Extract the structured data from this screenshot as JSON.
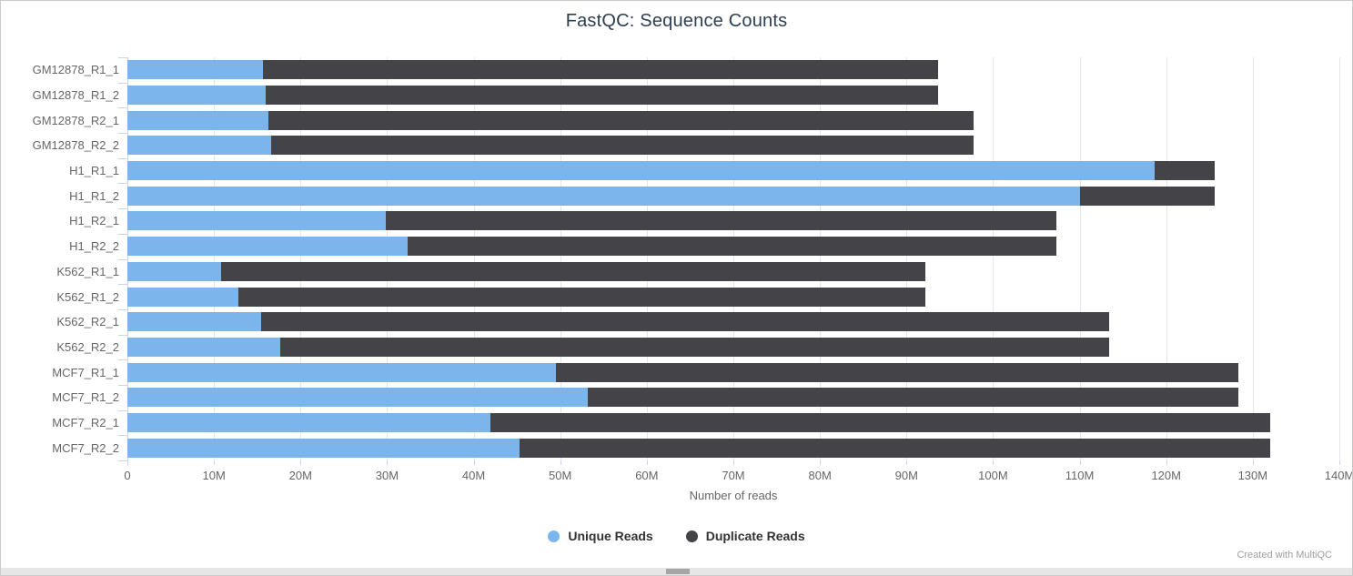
{
  "chart_data": {
    "type": "bar",
    "orientation": "horizontal",
    "stacked": true,
    "title": "FastQC: Sequence Counts",
    "xlabel": "Number of reads",
    "grid": "vertical-on",
    "legend_position": "bottom",
    "x_axis": {
      "min": 0,
      "max": 140,
      "unit": "millions of reads",
      "ticks": [
        {
          "value": 0,
          "label": "0"
        },
        {
          "value": 10,
          "label": "10M"
        },
        {
          "value": 20,
          "label": "20M"
        },
        {
          "value": 30,
          "label": "30M"
        },
        {
          "value": 40,
          "label": "40M"
        },
        {
          "value": 50,
          "label": "50M"
        },
        {
          "value": 60,
          "label": "60M"
        },
        {
          "value": 70,
          "label": "70M"
        },
        {
          "value": 80,
          "label": "80M"
        },
        {
          "value": 90,
          "label": "90M"
        },
        {
          "value": 100,
          "label": "100M"
        },
        {
          "value": 110,
          "label": "110M"
        },
        {
          "value": 120,
          "label": "120M"
        },
        {
          "value": 130,
          "label": "130M"
        },
        {
          "value": 140,
          "label": "140M"
        }
      ]
    },
    "categories": [
      "GM12878_R1_1",
      "GM12878_R1_2",
      "GM12878_R2_1",
      "GM12878_R2_2",
      "H1_R1_1",
      "H1_R1_2",
      "H1_R2_1",
      "H1_R2_2",
      "K562_R1_1",
      "K562_R1_2",
      "K562_R2_1",
      "K562_R2_2",
      "MCF7_R1_1",
      "MCF7_R1_2",
      "MCF7_R2_1",
      "MCF7_R2_2"
    ],
    "series": [
      {
        "name": "Unique Reads",
        "color": "#7cb5ec",
        "values": [
          15.7,
          16.0,
          16.3,
          16.6,
          118.7,
          110.0,
          29.8,
          32.4,
          10.8,
          12.8,
          15.4,
          17.7,
          49.5,
          53.2,
          41.9,
          45.3
        ]
      },
      {
        "name": "Duplicate Reads",
        "color": "#434348",
        "values": [
          77.9,
          77.6,
          81.4,
          81.1,
          6.9,
          15.6,
          77.5,
          74.9,
          81.4,
          79.4,
          98.0,
          95.7,
          78.8,
          75.1,
          90.1,
          86.7
        ]
      }
    ],
    "stack_totals": [
      93.6,
      93.6,
      97.7,
      97.7,
      125.6,
      125.6,
      107.3,
      107.3,
      92.2,
      92.2,
      113.4,
      113.4,
      128.3,
      128.3,
      132.0,
      132.0
    ]
  },
  "colors": {
    "unique": "#7cb5ec",
    "duplicate": "#434348",
    "gridline": "#e6e6e6",
    "axis_line": "#ccd6eb",
    "tick_text": "#666666",
    "title_text": "#2c3e50"
  },
  "footer": {
    "watermark": "Created with MultiQC"
  }
}
